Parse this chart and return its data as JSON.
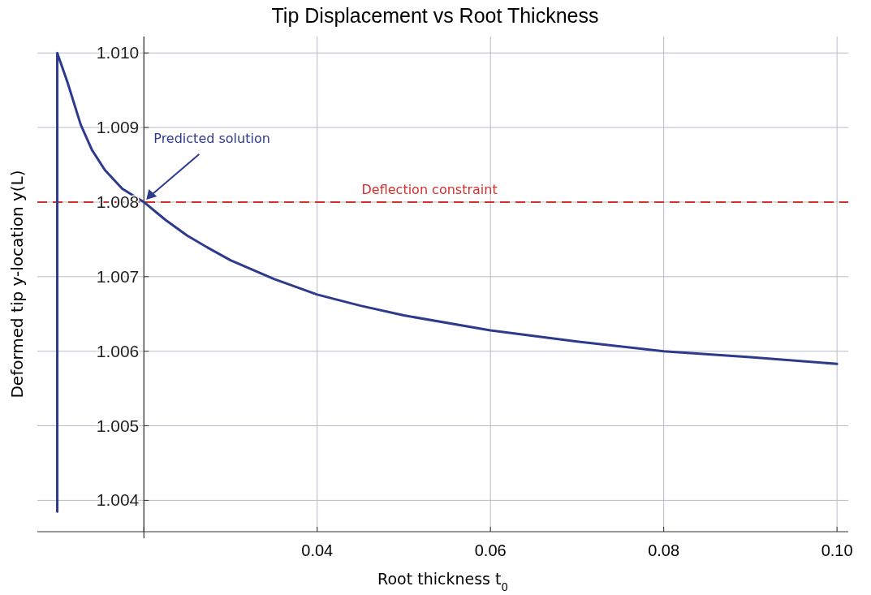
{
  "chart_data": {
    "type": "line",
    "title": "Tip Displacement vs Root Thickness",
    "xlabel": "Root thickness t$_{0}$",
    "ylabel": "Deformed tip y-location y(L)",
    "xlim": [
      0.0077,
      0.1013
    ],
    "ylim": [
      1.00358,
      1.01022
    ],
    "xticks": [
      {
        "value": 0.02,
        "label": null
      },
      0.04,
      0.06,
      0.08,
      {
        "value": 0.1,
        "label": "0.10"
      }
    ],
    "yticks": [
      {
        "value": 1.004,
        "label": "1.004"
      },
      {
        "value": 1.005,
        "label": "1.005"
      },
      {
        "value": 1.006,
        "label": "1.006"
      },
      {
        "value": 1.007,
        "label": "1.007"
      },
      {
        "value": 1.008,
        "label": "1.008"
      },
      {
        "value": 1.009,
        "label": "1.009"
      },
      {
        "value": 1.01,
        "label": "1.010"
      }
    ],
    "grid": true,
    "line_style": "solid",
    "series": [
      {
        "color": "#2e3a8c",
        "x": [
          0.01,
          0.01,
          0.0112,
          0.0127,
          0.014,
          0.0155,
          0.0175,
          0.02,
          0.0225,
          0.025,
          0.0275,
          0.03,
          0.035,
          0.04,
          0.045,
          0.05,
          0.06,
          0.07,
          0.08,
          0.09,
          0.1
        ],
        "values": [
          1.00385,
          1.01,
          1.0096,
          1.00904,
          1.0087,
          1.00843,
          1.00818,
          1.008,
          1.00776,
          1.00755,
          1.00738,
          1.00722,
          1.00697,
          1.00676,
          1.00661,
          1.00648,
          1.00628,
          1.00613,
          1.006,
          1.00592,
          1.00583
        ]
      }
    ],
    "ref_lines": [
      {
        "axis": "y",
        "value": 1.008,
        "label": "Deflection constraint",
        "color": "#d0312d",
        "line_style": "dashed"
      }
    ],
    "annotations": [
      {
        "text": "Predicted solution",
        "x": 0.02,
        "y": 1.008
      }
    ]
  }
}
